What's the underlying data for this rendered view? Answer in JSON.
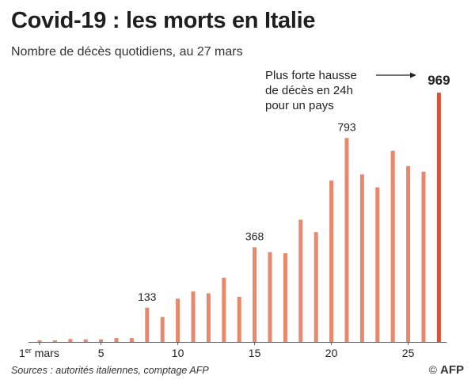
{
  "header": {
    "title": "Covid-19 : les morts en Italie",
    "subtitle": "Nombre de décès quotidiens, au 27 mars"
  },
  "chart_data": {
    "type": "bar",
    "categories": [
      1,
      2,
      3,
      4,
      5,
      6,
      7,
      8,
      9,
      10,
      11,
      12,
      13,
      14,
      15,
      16,
      17,
      18,
      19,
      20,
      21,
      22,
      23,
      24,
      25,
      26,
      27
    ],
    "values": [
      6,
      6,
      11,
      10,
      10,
      15,
      15,
      133,
      97,
      168,
      196,
      189,
      250,
      175,
      368,
      349,
      345,
      475,
      427,
      627,
      793,
      651,
      601,
      743,
      683,
      662,
      969
    ],
    "ylim": [
      0,
      1000
    ],
    "highlight_index": 26,
    "xticks": [
      {
        "day": 1,
        "label": "1",
        "sup": "er",
        "suffix": " mars"
      },
      {
        "day": 5,
        "label": "5"
      },
      {
        "day": 10,
        "label": "10"
      },
      {
        "day": 15,
        "label": "15"
      },
      {
        "day": 20,
        "label": "20"
      },
      {
        "day": 25,
        "label": "25"
      }
    ],
    "data_labels": [
      {
        "index": 7,
        "text": "133"
      },
      {
        "index": 14,
        "text": "368"
      },
      {
        "index": 20,
        "text": "793"
      },
      {
        "index": 26,
        "text": "969"
      }
    ],
    "annotation": {
      "lines": [
        "Plus forte hausse",
        "de décès en 24h",
        "pour un pays"
      ]
    },
    "colors": {
      "bar": "#e8876a",
      "highlight": "#d9533a",
      "axis": "#555555",
      "text": "#222222"
    }
  },
  "footer": {
    "source": "Sources : autorités italiennes, comptage AFP",
    "copyright": "©",
    "brand": "AFP"
  }
}
